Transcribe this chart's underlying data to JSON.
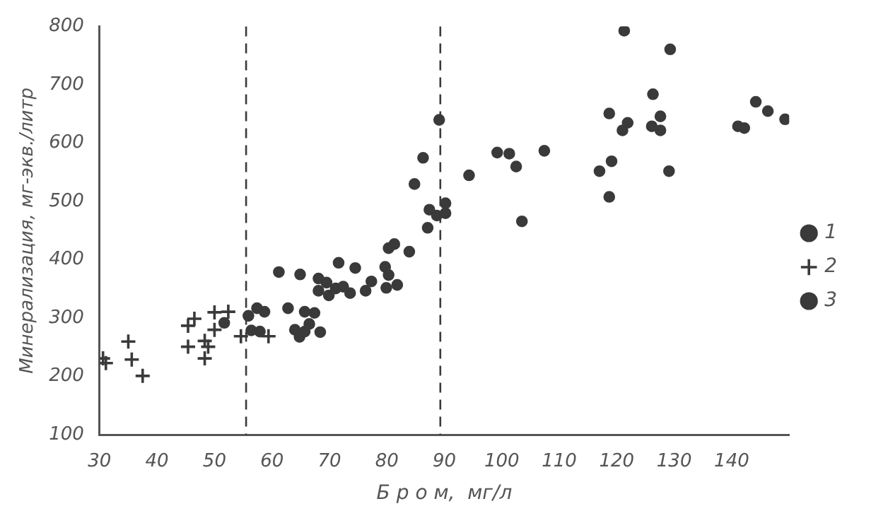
{
  "chart_data": {
    "type": "scatter",
    "xlabel": "Б р о м,  мг/л",
    "ylabel": "Минерализация, мг-экв./литр",
    "xlim": [
      30,
      150
    ],
    "ylim": [
      100,
      800
    ],
    "xticks": [
      30,
      40,
      50,
      60,
      70,
      80,
      90,
      100,
      110,
      120,
      130,
      140
    ],
    "yticks": [
      100,
      200,
      300,
      400,
      500,
      600,
      700,
      800
    ],
    "grid": false,
    "legend": "right",
    "series": [
      {
        "name": "1",
        "color": "#3a3a3a",
        "marker": "circle",
        "x": [
          89.1,
          86.3,
          84.8,
          90.2,
          90.2,
          94.3,
          99.2,
          101.3,
          102.5,
          103.5,
          107.4,
          117,
          118.7,
          119.1,
          118.7,
          121.3,
          121,
          121.9,
          126.1,
          126.3,
          127.6,
          127.6,
          129.1,
          129.3,
          141.1,
          142.2,
          144.2,
          146.3,
          149.3
        ],
        "values": [
          640,
          575,
          530,
          497,
          480,
          545,
          584,
          582,
          560,
          466,
          587,
          552,
          508,
          569,
          651,
          793,
          622,
          635,
          629,
          684,
          646,
          622,
          552,
          761,
          629,
          626,
          671,
          655,
          641
        ]
      },
      {
        "name": "2",
        "color": "#3a3a3a",
        "marker": "cross",
        "x": [
          30.6,
          31.1,
          35,
          35.6,
          37.5,
          45.4,
          46.5,
          45.4,
          48.3,
          48.9,
          48.3,
          50,
          50,
          52.4,
          54.6,
          59.4
        ],
        "values": [
          231,
          223,
          260,
          229,
          201,
          287,
          299,
          251,
          261,
          251,
          231,
          310,
          280,
          311,
          269,
          269
        ]
      },
      {
        "name": "3",
        "color": "#3a3a3a",
        "marker": "circle",
        "x": [
          51.7,
          55.9,
          56.4,
          57.4,
          57.9,
          58.7,
          61.2,
          62.8,
          64,
          64.9,
          64.8,
          65.7,
          65.7,
          66.5,
          67.4,
          68.1,
          68.1,
          68.4,
          69.5,
          69.9,
          71.1,
          71.6,
          72.4,
          73.6,
          74.5,
          76.3,
          77.3,
          79.7,
          79.9,
          80.3,
          80.3,
          81.3,
          81.8,
          83.9,
          87.1,
          87.4,
          88.7
        ],
        "values": [
          292,
          304,
          279,
          317,
          277,
          311,
          379,
          317,
          280,
          375,
          268,
          311,
          277,
          290,
          309,
          368,
          347,
          276,
          361,
          339,
          351,
          395,
          354,
          343,
          386,
          347,
          363,
          388,
          352,
          374,
          420,
          427,
          357,
          414,
          455,
          486,
          476
        ]
      }
    ],
    "ref_lines": [
      {
        "axis": "x",
        "value": 55.5,
        "line_style": "dashed",
        "color": "#3a3a3a"
      },
      {
        "axis": "x",
        "value": 89.3,
        "line_style": "dashed",
        "color": "#3a3a3a"
      }
    ]
  }
}
